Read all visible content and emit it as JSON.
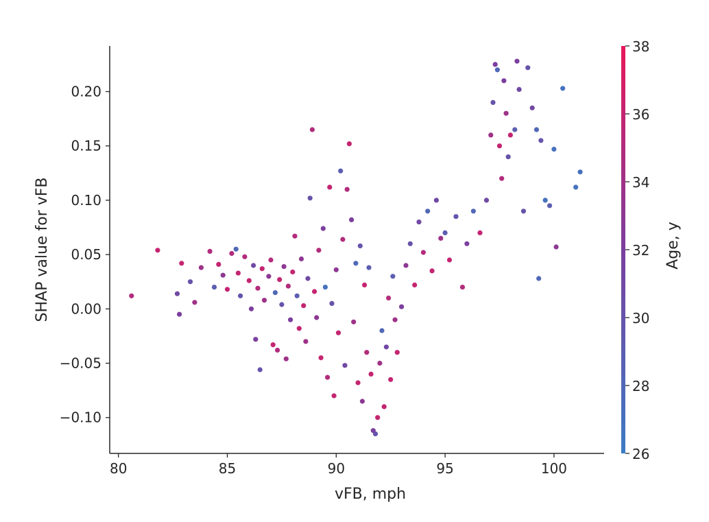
{
  "chart_data": {
    "type": "scatter",
    "title": "",
    "xlabel": "vFB, mph",
    "ylabel": "SHAP value for vFB",
    "xlim": [
      79.6,
      102.3
    ],
    "ylim": [
      -0.133,
      0.242
    ],
    "x_ticks": [
      80,
      85,
      90,
      95,
      100
    ],
    "x_tick_labels": [
      "80",
      "85",
      "90",
      "95",
      "100"
    ],
    "y_ticks": [
      -0.1,
      -0.05,
      0.0,
      0.05,
      0.1,
      0.15,
      0.2
    ],
    "y_tick_labels": [
      "−0.10",
      "−0.05",
      "0.00",
      "0.05",
      "0.10",
      "0.15",
      "0.20"
    ],
    "grid": false,
    "colorbar": {
      "label": "Age, y",
      "min": 26,
      "max": 38,
      "ticks": [
        26,
        28,
        30,
        32,
        34,
        36,
        38
      ],
      "tick_labels": [
        "26",
        "28",
        "30",
        "32",
        "34",
        "36",
        "38"
      ],
      "color_low": "#3c7cc4",
      "color_mid": "#7b3f9e",
      "color_high": "#e8185a"
    },
    "points": [
      [
        80.6,
        0.012,
        35
      ],
      [
        81.8,
        0.054,
        36
      ],
      [
        82.7,
        0.014,
        31
      ],
      [
        82.8,
        -0.005,
        32
      ],
      [
        82.9,
        0.042,
        36
      ],
      [
        83.3,
        0.025,
        30
      ],
      [
        83.5,
        0.006,
        34
      ],
      [
        83.8,
        0.038,
        34
      ],
      [
        84.2,
        0.053,
        35
      ],
      [
        84.4,
        0.02,
        29
      ],
      [
        84.6,
        0.041,
        36
      ],
      [
        84.8,
        0.031,
        33
      ],
      [
        85.0,
        0.018,
        36
      ],
      [
        85.2,
        0.051,
        35
      ],
      [
        85.4,
        0.055,
        28
      ],
      [
        85.5,
        0.033,
        36
      ],
      [
        85.6,
        0.012,
        30
      ],
      [
        85.8,
        0.048,
        35
      ],
      [
        86.0,
        0.026,
        36
      ],
      [
        86.1,
        0.0,
        32
      ],
      [
        86.2,
        0.04,
        31
      ],
      [
        86.3,
        -0.028,
        32
      ],
      [
        86.4,
        0.019,
        35
      ],
      [
        86.5,
        -0.056,
        30
      ],
      [
        86.6,
        0.037,
        36
      ],
      [
        86.7,
        0.008,
        34
      ],
      [
        86.9,
        0.03,
        33
      ],
      [
        87.0,
        0.045,
        35
      ],
      [
        87.1,
        -0.033,
        36
      ],
      [
        87.2,
        0.015,
        28
      ],
      [
        87.3,
        -0.038,
        35
      ],
      [
        87.4,
        0.027,
        36
      ],
      [
        87.5,
        0.004,
        30
      ],
      [
        87.6,
        0.039,
        33
      ],
      [
        87.7,
        -0.046,
        34
      ],
      [
        87.8,
        0.021,
        35
      ],
      [
        87.9,
        -0.01,
        32
      ],
      [
        88.0,
        0.034,
        36
      ],
      [
        88.1,
        0.067,
        35
      ],
      [
        88.2,
        0.012,
        29
      ],
      [
        88.3,
        -0.018,
        36
      ],
      [
        88.4,
        0.046,
        33
      ],
      [
        88.5,
        0.003,
        36
      ],
      [
        88.6,
        -0.03,
        34
      ],
      [
        88.7,
        0.028,
        31
      ],
      [
        88.8,
        0.102,
        30
      ],
      [
        88.9,
        0.165,
        35
      ],
      [
        89.0,
        0.016,
        36
      ],
      [
        89.1,
        -0.008,
        33
      ],
      [
        89.2,
        0.054,
        35
      ],
      [
        89.3,
        -0.045,
        36
      ],
      [
        89.4,
        0.074,
        32
      ],
      [
        89.5,
        0.02,
        27
      ],
      [
        89.6,
        -0.063,
        35
      ],
      [
        89.7,
        0.112,
        36
      ],
      [
        89.8,
        0.005,
        30
      ],
      [
        89.9,
        -0.08,
        36
      ],
      [
        90.0,
        0.036,
        33
      ],
      [
        90.1,
        -0.022,
        36
      ],
      [
        90.2,
        0.127,
        29
      ],
      [
        90.3,
        0.064,
        35
      ],
      [
        90.4,
        -0.052,
        31
      ],
      [
        90.5,
        0.11,
        35
      ],
      [
        90.6,
        0.152,
        36
      ],
      [
        90.7,
        0.082,
        32
      ],
      [
        90.8,
        -0.012,
        34
      ],
      [
        90.9,
        0.042,
        28
      ],
      [
        91.0,
        -0.068,
        36
      ],
      [
        91.1,
        0.058,
        30
      ],
      [
        91.2,
        -0.085,
        33
      ],
      [
        91.3,
        0.022,
        36
      ],
      [
        91.4,
        -0.04,
        35
      ],
      [
        91.5,
        0.038,
        29
      ],
      [
        91.6,
        -0.06,
        36
      ],
      [
        91.7,
        -0.112,
        32
      ],
      [
        91.8,
        -0.115,
        30
      ],
      [
        91.9,
        -0.1,
        36
      ],
      [
        92.0,
        -0.05,
        34
      ],
      [
        92.1,
        -0.02,
        28
      ],
      [
        92.2,
        -0.09,
        36
      ],
      [
        92.3,
        -0.035,
        31
      ],
      [
        92.4,
        0.01,
        35
      ],
      [
        92.5,
        -0.065,
        36
      ],
      [
        92.6,
        0.03,
        29
      ],
      [
        92.7,
        -0.01,
        34
      ],
      [
        92.8,
        -0.04,
        36
      ],
      [
        93.0,
        0.002,
        32
      ],
      [
        93.2,
        0.04,
        33
      ],
      [
        93.4,
        0.06,
        30
      ],
      [
        93.6,
        0.022,
        36
      ],
      [
        93.8,
        0.08,
        31
      ],
      [
        94.0,
        0.052,
        35
      ],
      [
        94.2,
        0.09,
        28
      ],
      [
        94.4,
        0.035,
        36
      ],
      [
        94.6,
        0.1,
        31
      ],
      [
        94.8,
        0.065,
        34
      ],
      [
        95.0,
        0.07,
        29
      ],
      [
        95.2,
        0.045,
        36
      ],
      [
        95.5,
        0.085,
        30
      ],
      [
        95.8,
        0.02,
        35
      ],
      [
        96.0,
        0.06,
        32
      ],
      [
        96.3,
        0.09,
        28
      ],
      [
        96.6,
        0.07,
        36
      ],
      [
        96.9,
        0.1,
        31
      ],
      [
        97.1,
        0.16,
        34
      ],
      [
        97.2,
        0.19,
        30
      ],
      [
        97.3,
        0.225,
        32
      ],
      [
        97.4,
        0.22,
        28
      ],
      [
        97.5,
        0.15,
        36
      ],
      [
        97.6,
        0.12,
        35
      ],
      [
        97.7,
        0.21,
        32
      ],
      [
        97.8,
        0.18,
        34
      ],
      [
        97.9,
        0.14,
        30
      ],
      [
        98.0,
        0.16,
        36
      ],
      [
        98.2,
        0.165,
        29
      ],
      [
        98.3,
        0.228,
        32
      ],
      [
        98.4,
        0.202,
        31
      ],
      [
        98.6,
        0.09,
        30
      ],
      [
        98.8,
        0.222,
        30
      ],
      [
        99.0,
        0.185,
        31
      ],
      [
        99.2,
        0.165,
        28
      ],
      [
        99.3,
        0.028,
        28
      ],
      [
        99.4,
        0.155,
        30
      ],
      [
        99.6,
        0.1,
        27
      ],
      [
        99.8,
        0.095,
        29
      ],
      [
        100.0,
        0.147,
        27
      ],
      [
        100.1,
        0.057,
        33
      ],
      [
        100.4,
        0.203,
        27
      ],
      [
        101.0,
        0.112,
        27
      ],
      [
        101.2,
        0.126,
        27
      ]
    ]
  }
}
